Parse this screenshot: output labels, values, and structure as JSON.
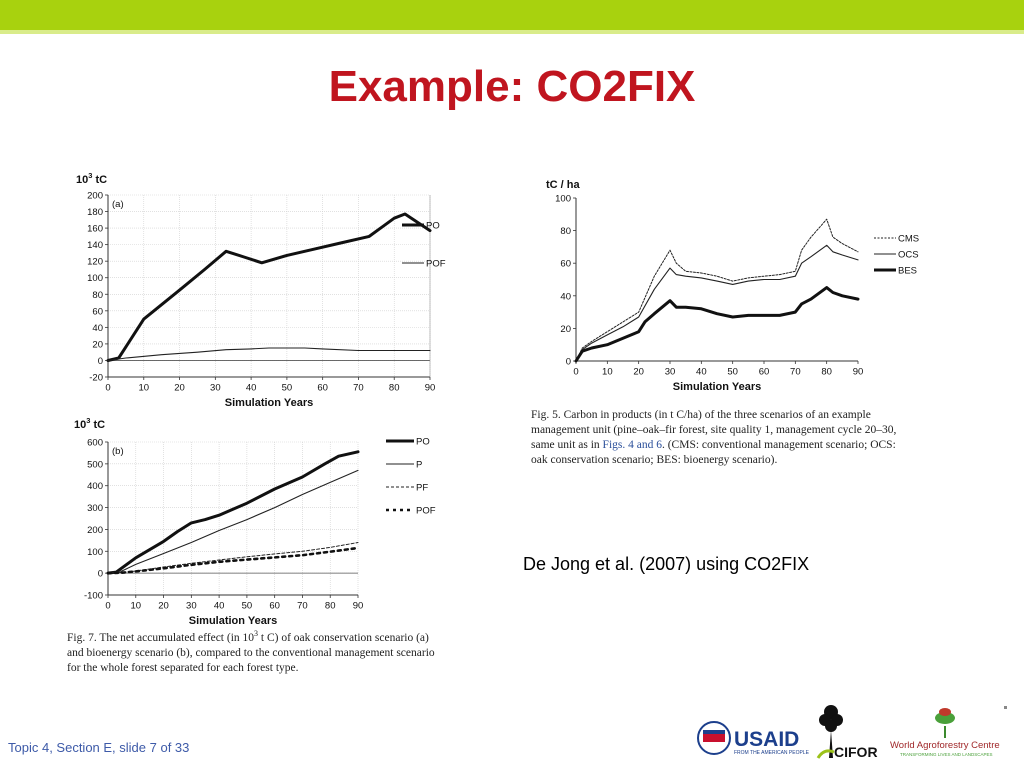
{
  "slide": {
    "title": "Example: CO2FIX",
    "citation": "De Jong et al. (2007) using CO2FIX",
    "footer": "Topic 4, Section E, slide 7 of 33"
  },
  "captions": {
    "fig5_lines": [
      "Fig. 5.  Carbon in products (in t C/ha) of the three scenarios of an example",
      "management unit (pine–oak–fir forest, site quality 1, management cycle 20–30,",
      "same unit as in |Figs. 4 and 6|. (CMS: conventional management scenario; OCS:",
      "oak conservation scenario; BES: bioenergy scenario)."
    ],
    "fig7_lines": [
      "Fig. 7.  The net accumulated effect (in 10^3 t C) of oak conservation scenario (a)",
      "and bioenergy scenario (b), compared to the conventional management scenario",
      "for the whole forest separated for each forest type."
    ]
  },
  "logos": {
    "usaid": "USAID",
    "usaid_sub": "FROM THE AMERICAN PEOPLE",
    "cifor": "CIFOR",
    "icraf": "World Agroforestry Centre",
    "icraf_sub": "TRANSFORMING LIVES AND LANDSCAPES"
  },
  "colors": {
    "title": "#c0151f",
    "topbar": "#a8d20e",
    "footer": "#3d5aa8"
  },
  "chart_data": [
    {
      "id": "fig7a",
      "type": "line",
      "panel_label": "(a)",
      "unit_base": "10",
      "unit_exp": "3",
      "unit_suffix": " tC",
      "xlabel": "Simulation Years",
      "xlim": [
        0,
        90
      ],
      "ylim": [
        -20,
        200
      ],
      "xticks": [
        0,
        10,
        20,
        30,
        40,
        50,
        60,
        70,
        80,
        90
      ],
      "yticks": [
        -20,
        0,
        20,
        40,
        60,
        80,
        100,
        120,
        140,
        160,
        180,
        200
      ],
      "grid": true,
      "legend": "right",
      "series": [
        {
          "name": "PO",
          "style": "thick",
          "x": [
            0,
            3,
            10,
            20,
            27,
            33,
            38,
            43,
            50,
            58,
            65,
            73,
            80,
            83,
            90
          ],
          "y": [
            0,
            3,
            50,
            85,
            110,
            132,
            125,
            118,
            127,
            135,
            142,
            150,
            172,
            177,
            157
          ]
        },
        {
          "name": "POF",
          "style": "thin",
          "x": [
            0,
            5,
            15,
            25,
            33,
            40,
            45,
            55,
            60,
            70,
            80,
            90
          ],
          "y": [
            0,
            3,
            7,
            10,
            13,
            14,
            15,
            15,
            14,
            12,
            12,
            12
          ]
        }
      ]
    },
    {
      "id": "fig7b",
      "type": "line",
      "panel_label": "(b)",
      "unit_base": "10",
      "unit_exp": "3",
      "unit_suffix": " tC",
      "xlabel": "Simulation Years",
      "xlim": [
        0,
        90
      ],
      "ylim": [
        -100,
        600
      ],
      "xticks": [
        0,
        10,
        20,
        30,
        40,
        50,
        60,
        70,
        80,
        90
      ],
      "yticks": [
        -100,
        0,
        100,
        200,
        300,
        400,
        500,
        600
      ],
      "grid": true,
      "legend": "right",
      "series": [
        {
          "name": "PO",
          "style": "thick",
          "x": [
            0,
            3,
            10,
            20,
            25,
            30,
            35,
            40,
            50,
            60,
            70,
            78,
            83,
            90
          ],
          "y": [
            0,
            5,
            70,
            145,
            190,
            230,
            245,
            265,
            320,
            385,
            440,
            500,
            535,
            555
          ]
        },
        {
          "name": "P",
          "style": "thin",
          "x": [
            0,
            5,
            10,
            20,
            30,
            40,
            50,
            60,
            70,
            80,
            90
          ],
          "y": [
            0,
            10,
            40,
            90,
            140,
            195,
            245,
            300,
            360,
            415,
            470
          ]
        },
        {
          "name": "PF",
          "style": "dashed",
          "x": [
            0,
            5,
            10,
            20,
            30,
            40,
            50,
            60,
            70,
            80,
            90
          ],
          "y": [
            0,
            3,
            10,
            28,
            45,
            60,
            75,
            88,
            100,
            118,
            140
          ]
        },
        {
          "name": "POF",
          "style": "dotted-thick",
          "x": [
            0,
            5,
            10,
            20,
            30,
            40,
            50,
            60,
            70,
            80,
            90
          ],
          "y": [
            0,
            2,
            8,
            22,
            38,
            52,
            62,
            72,
            82,
            98,
            115
          ]
        }
      ]
    },
    {
      "id": "fig5",
      "type": "line",
      "unit_label": "tC / ha",
      "xlabel": "Simulation Years",
      "xlim": [
        0,
        90
      ],
      "ylim": [
        0,
        100
      ],
      "xticks": [
        0,
        10,
        20,
        30,
        40,
        50,
        60,
        70,
        80,
        90
      ],
      "yticks": [
        0,
        20,
        40,
        60,
        80,
        100
      ],
      "grid": false,
      "legend": "right",
      "series": [
        {
          "name": "CMS",
          "style": "dotted",
          "x": [
            0,
            2,
            5,
            10,
            15,
            20,
            25,
            30,
            32,
            35,
            40,
            45,
            50,
            55,
            60,
            65,
            70,
            72,
            75,
            80,
            82,
            85,
            90
          ],
          "y": [
            0,
            8,
            12,
            18,
            24,
            30,
            52,
            68,
            60,
            55,
            54,
            52,
            49,
            51,
            52,
            53,
            55,
            68,
            76,
            87,
            76,
            72,
            67
          ]
        },
        {
          "name": "OCS",
          "style": "thin",
          "x": [
            0,
            2,
            5,
            10,
            15,
            20,
            25,
            30,
            32,
            35,
            40,
            45,
            50,
            55,
            60,
            65,
            70,
            72,
            75,
            80,
            82,
            85,
            90
          ],
          "y": [
            0,
            7,
            11,
            16,
            21,
            27,
            44,
            57,
            53,
            52,
            51,
            49,
            47,
            49,
            50,
            50,
            52,
            60,
            64,
            71,
            67,
            65,
            62
          ]
        },
        {
          "name": "BES",
          "style": "thick",
          "x": [
            0,
            2,
            5,
            10,
            15,
            20,
            22,
            25,
            30,
            32,
            35,
            40,
            45,
            50,
            55,
            60,
            65,
            70,
            72,
            75,
            80,
            82,
            85,
            90
          ],
          "y": [
            0,
            6,
            8,
            10,
            14,
            18,
            24,
            29,
            37,
            33,
            33,
            32,
            29,
            27,
            28,
            28,
            28,
            30,
            35,
            38,
            45,
            42,
            40,
            38
          ]
        }
      ]
    }
  ]
}
